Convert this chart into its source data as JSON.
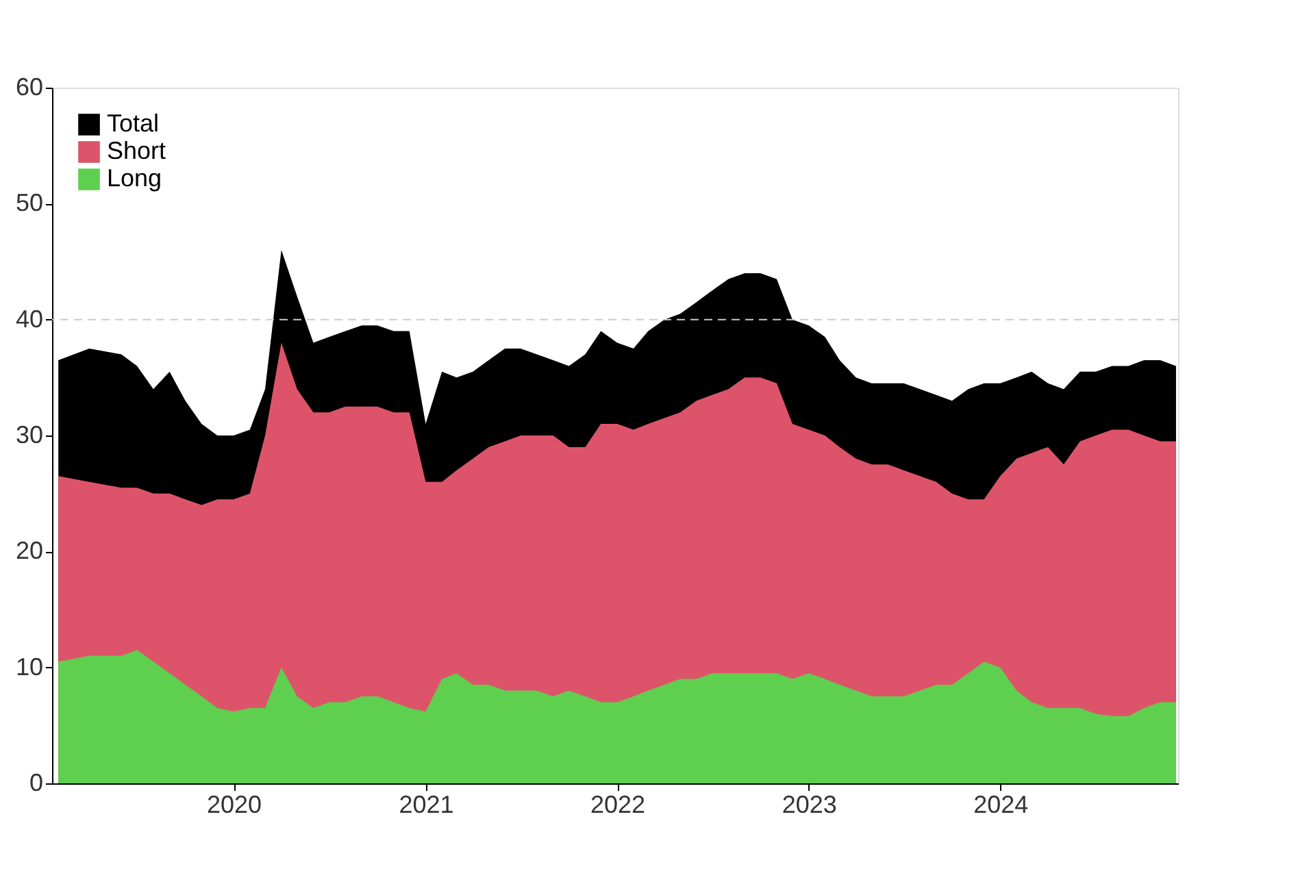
{
  "chart_data": {
    "type": "area",
    "x": [
      "2019-02",
      "2019-04",
      "2019-06",
      "2019-07",
      "2019-08",
      "2019-09",
      "2019-10",
      "2019-11",
      "2019-12",
      "2020-01",
      "2020-02",
      "2020-03",
      "2020-04",
      "2020-05",
      "2020-06",
      "2020-07",
      "2020-08",
      "2020-09",
      "2020-10",
      "2020-11",
      "2020-12",
      "2021-01",
      "2021-02",
      "2021-03",
      "2021-04",
      "2021-05",
      "2021-06",
      "2021-07",
      "2021-08",
      "2021-09",
      "2021-10",
      "2021-11",
      "2021-12",
      "2022-01",
      "2022-02",
      "2022-03",
      "2022-04",
      "2022-05",
      "2022-06",
      "2022-07",
      "2022-08",
      "2022-09",
      "2022-10",
      "2022-11",
      "2022-12",
      "2023-01",
      "2023-02",
      "2023-03",
      "2023-04",
      "2023-05",
      "2023-06",
      "2023-07",
      "2023-08",
      "2023-09",
      "2023-10",
      "2023-11",
      "2023-12",
      "2024-01",
      "2024-02",
      "2024-03",
      "2024-04",
      "2024-05",
      "2024-06",
      "2024-07",
      "2024-08",
      "2024-09",
      "2024-10",
      "2024-11",
      "2024-12"
    ],
    "series": [
      {
        "name": "Total",
        "color": "#000000",
        "values": [
          36.5,
          37.5,
          37,
          36,
          34,
          35.5,
          33,
          31,
          30,
          30,
          30.5,
          34,
          46,
          42,
          38,
          38.5,
          39,
          39.5,
          39.5,
          39,
          39,
          31,
          35.5,
          35,
          35.5,
          36.5,
          37.5,
          37.5,
          37,
          36.5,
          36,
          37,
          39,
          38,
          37.5,
          39,
          40,
          40.5,
          41.5,
          42.5,
          43.5,
          44,
          44,
          43.5,
          40,
          39.5,
          38.5,
          36.5,
          35,
          34.5,
          34.5,
          34.5,
          34,
          33.5,
          33,
          34,
          34.5,
          34.5,
          35,
          35.5,
          34.5,
          34,
          35.5,
          35.5,
          36,
          36,
          36.5,
          36.5,
          36
        ]
      },
      {
        "name": "Short",
        "color": "#dd546a",
        "values": [
          26.5,
          26,
          25.5,
          25.5,
          25,
          25,
          24.5,
          24,
          24.5,
          24.5,
          25,
          30,
          38,
          34,
          32,
          32,
          32.5,
          32.5,
          32.5,
          32,
          32,
          26,
          26,
          27,
          28,
          29,
          29.5,
          30,
          30,
          30,
          29,
          29,
          31,
          31,
          30.5,
          31,
          31.5,
          32,
          33,
          33.5,
          34,
          35,
          35,
          34.5,
          31,
          30.5,
          30,
          29,
          28,
          27.5,
          27.5,
          27,
          26.5,
          26,
          25,
          24.5,
          24.5,
          26.5,
          28,
          28.5,
          29,
          27.5,
          29.5,
          30,
          30.5,
          30.5,
          30,
          29.5,
          29.5
        ]
      },
      {
        "name": "Long",
        "color": "#5fcf4f",
        "values": [
          10.5,
          11,
          11,
          11.5,
          10.5,
          9.5,
          8.5,
          7.5,
          6.5,
          6.2,
          6.5,
          6.5,
          10,
          7.5,
          6.5,
          7,
          7,
          7.5,
          7.5,
          7,
          6.5,
          6.2,
          9,
          9.5,
          8.5,
          8.5,
          8,
          8,
          8,
          7.5,
          8,
          7.5,
          7,
          7,
          7.5,
          8,
          8.5,
          9,
          9,
          9.5,
          9.5,
          9.5,
          9.5,
          9.5,
          9,
          9.5,
          9,
          8.5,
          8,
          7.5,
          7.5,
          7.5,
          8,
          8.5,
          8.5,
          9.5,
          10.5,
          10,
          8,
          7,
          6.5,
          6.5,
          6.5,
          6,
          5.8,
          5.8,
          6.5,
          7,
          7
        ]
      }
    ],
    "xlim": [
      "2019-01-20",
      "2024-12-05"
    ],
    "xticks": [
      "2020",
      "2021",
      "2022",
      "2023",
      "2024"
    ],
    "ylim": [
      0,
      60
    ],
    "yticks": [
      0,
      10,
      20,
      30,
      40,
      50,
      60
    ],
    "ref_lines": [
      {
        "axis": "y",
        "value": 40,
        "color": "#cccccc",
        "line_style": "dashed"
      }
    ],
    "grid": false,
    "legend": "top left"
  }
}
